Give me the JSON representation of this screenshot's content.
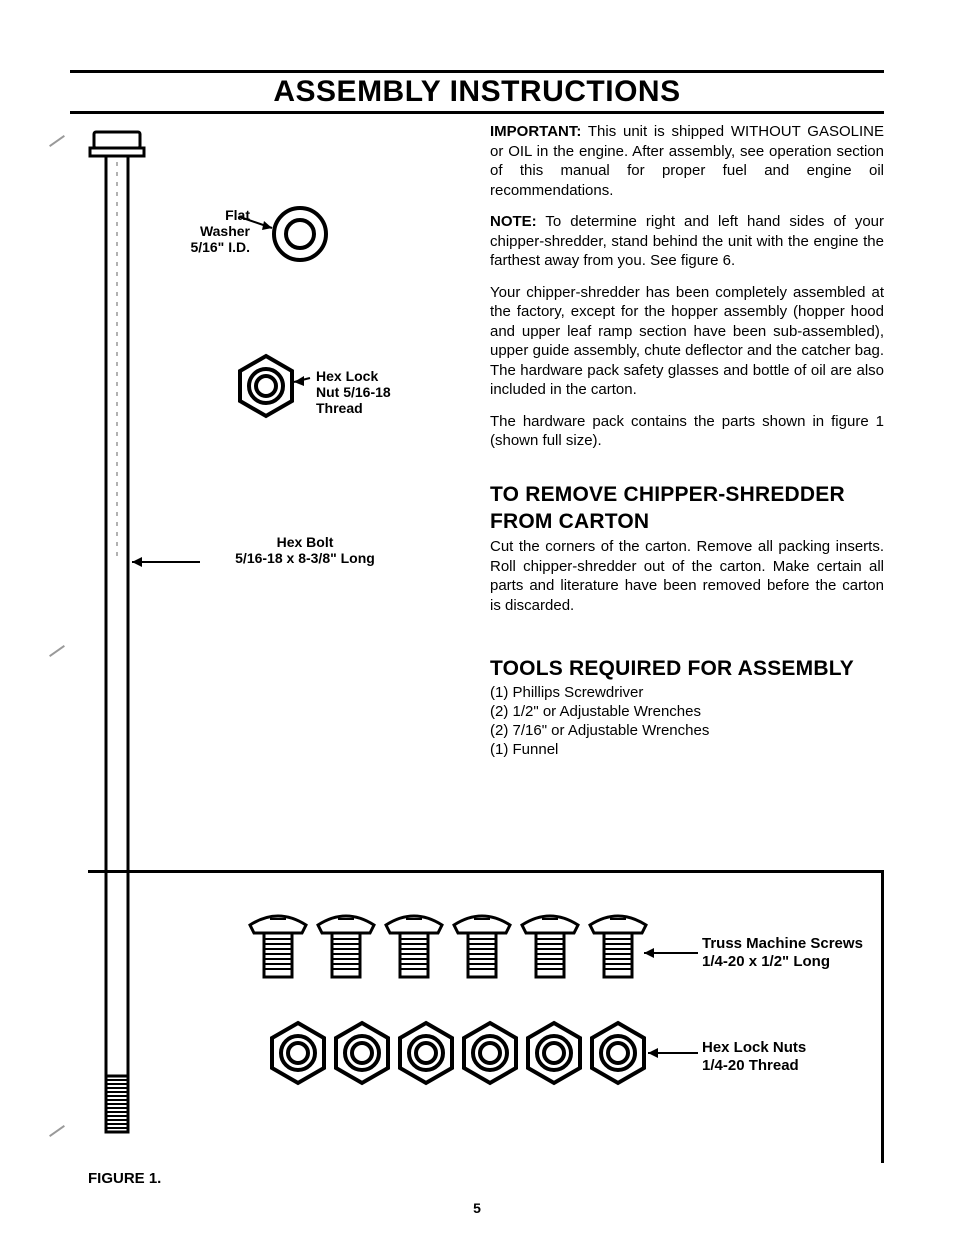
{
  "page": {
    "title": "ASSEMBLY INSTRUCTIONS",
    "figure_caption": "FIGURE 1.",
    "page_number": "5"
  },
  "labels": {
    "flat_washer": "Flat\nWasher\n5/16\" I.D.",
    "hex_lock_nut": "Hex Lock\nNut 5/16-18\nThread",
    "hex_bolt": "Hex Bolt\n5/16-18 x 8-3/8\" Long",
    "truss_screws": "Truss Machine Screws\n1/4-20 x 1/2\" Long",
    "hex_lock_nuts_14": "Hex Lock Nuts\n1/4-20 Thread"
  },
  "text": {
    "important_label": "IMPORTANT:",
    "important_body": " This unit is shipped WITHOUT GASOLINE or OIL in the engine. After assembly, see operation section of this manual for proper fuel and engine oil recommendations.",
    "note_label": "NOTE:",
    "note_body": " To determine right and left hand sides of your chipper-shredder, stand behind the unit with the engine the farthest away from you. See figure 6.",
    "para3": "Your chipper-shredder has been completely assembled at the factory, except for the hopper assembly (hopper hood and upper leaf ramp section have been sub-assembled), upper guide assembly, chute deflector and the catcher bag. The hardware pack safety glasses and bottle of oil are also included in the carton.",
    "para4": "The hardware pack contains the parts shown in figure 1 (shown full size).",
    "remove_head": "TO REMOVE CHIPPER-SHREDDER FROM CARTON",
    "remove_body": "Cut the corners of the carton. Remove all packing inserts. Roll chipper-shredder out of the carton. Make certain all parts and literature have been removed before the carton is discarded.",
    "tools_head": "TOOLS REQUIRED FOR ASSEMBLY",
    "tools": [
      "(1)  Phillips Screwdriver",
      "(2)  1/2\" or Adjustable Wrenches",
      "(2)  7/16\" or Adjustable Wrenches",
      "(1)  Funnel"
    ]
  },
  "style": {
    "stroke": "#000000",
    "fill_white": "#ffffff",
    "thick": 3,
    "thin": 2
  }
}
